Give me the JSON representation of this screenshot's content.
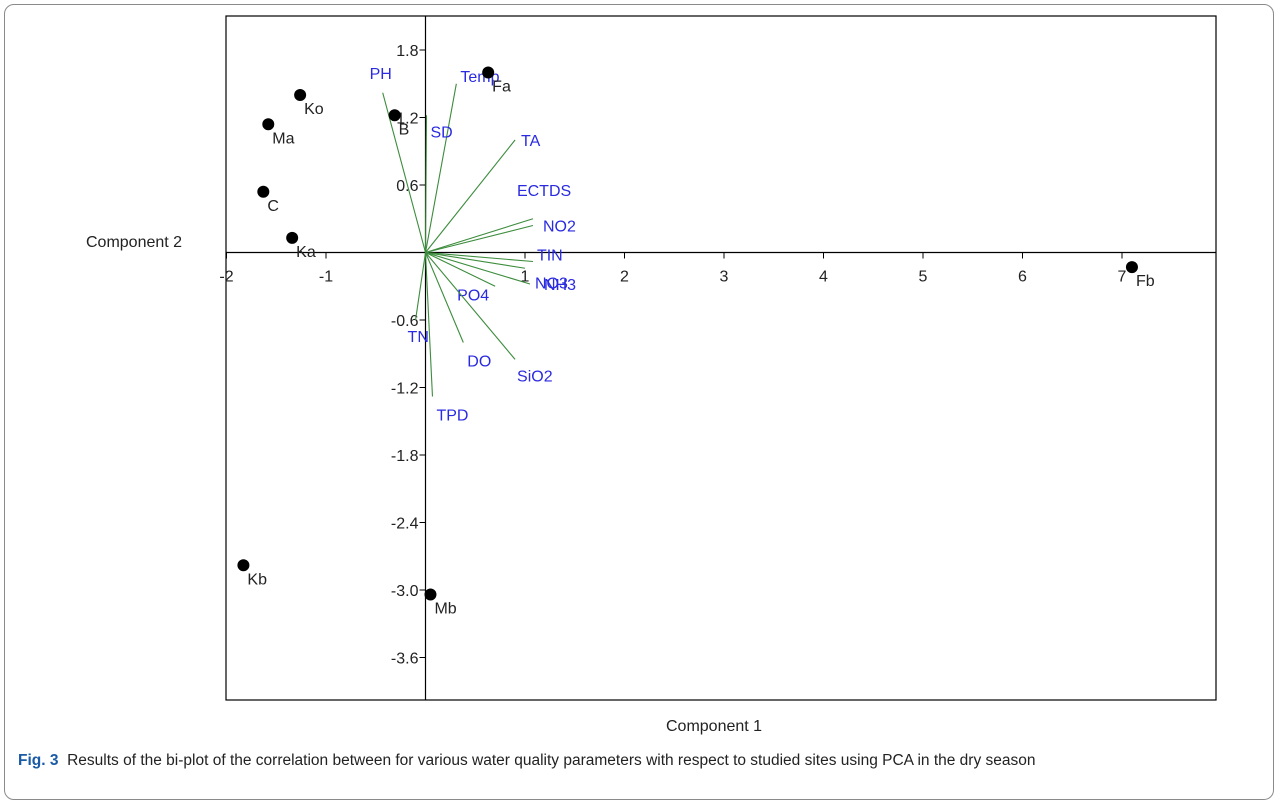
{
  "chart_data": {
    "type": "scatter",
    "subtype": "pca-biplot",
    "xlabel": "Component 1",
    "ylabel": "Component 2",
    "xlim": [
      -2.0,
      8.0
    ],
    "ylim": [
      -4.1,
      2.0
    ],
    "xticks": [
      -2,
      -1,
      1,
      2,
      3,
      4,
      5,
      6,
      7
    ],
    "yticks": [
      1.8,
      1.2,
      0.6,
      -0.6,
      -1.2,
      -1.8,
      -2.4,
      -3.0,
      -3.6
    ],
    "xtick_labels": [
      "-2",
      "-1",
      "1",
      "2",
      "3",
      "4",
      "5",
      "6",
      "7"
    ],
    "ytick_labels": [
      "1.8",
      "1.2",
      "0.6",
      "-0.6",
      "-1.2",
      "-1.8",
      "-2.4",
      "-3.0",
      "-3.6"
    ],
    "grid": false,
    "points": [
      {
        "label": "Fa",
        "x": 0.63,
        "y": 1.6
      },
      {
        "label": "Ko",
        "x": -1.26,
        "y": 1.4
      },
      {
        "label": "B",
        "x": -0.31,
        "y": 1.22
      },
      {
        "label": "Ma",
        "x": -1.58,
        "y": 1.14
      },
      {
        "label": "C",
        "x": -1.63,
        "y": 0.54
      },
      {
        "label": "Ka",
        "x": -1.34,
        "y": 0.13
      },
      {
        "label": "Fb",
        "x": 7.1,
        "y": -0.13
      },
      {
        "label": "Kb",
        "x": -1.83,
        "y": -2.78
      },
      {
        "label": "Mb",
        "x": 0.05,
        "y": -3.04
      }
    ],
    "loadings": [
      {
        "label": "PH",
        "x": -0.43,
        "y": 1.42
      },
      {
        "label": "Temp",
        "x": 0.31,
        "y": 1.5
      },
      {
        "label": "SD",
        "x": 0.01,
        "y": 1.22
      },
      {
        "label": "TA",
        "x": 0.9,
        "y": 1.0
      },
      {
        "label": "ECTDS",
        "x": 1.08,
        "y": 0.3
      },
      {
        "label": "NO2",
        "x": 1.08,
        "y": 0.24
      },
      {
        "label": "TIN",
        "x": 1.08,
        "y": -0.08
      },
      {
        "label": "NO3",
        "x": 1.0,
        "y": -0.14
      },
      {
        "label": "NH3",
        "x": 1.05,
        "y": -0.28
      },
      {
        "label": "PO4",
        "x": 0.7,
        "y": -0.3
      },
      {
        "label": "TN",
        "x": -0.1,
        "y": -0.6
      },
      {
        "label": "DO",
        "x": 0.38,
        "y": -0.8
      },
      {
        "label": "SiO2",
        "x": 0.9,
        "y": -0.95
      },
      {
        "label": "TPD",
        "x": 0.07,
        "y": -1.28
      }
    ],
    "colors": {
      "points": "#000000",
      "vectors": "#3c8c3c",
      "vector_labels": "#2a2ae0",
      "axes": "#000000"
    }
  },
  "caption": {
    "fig_label": "Fig. 3",
    "text": "Results of the bi-plot of the correlation between for various water quality parameters with respect to studied sites using PCA in the dry season"
  }
}
